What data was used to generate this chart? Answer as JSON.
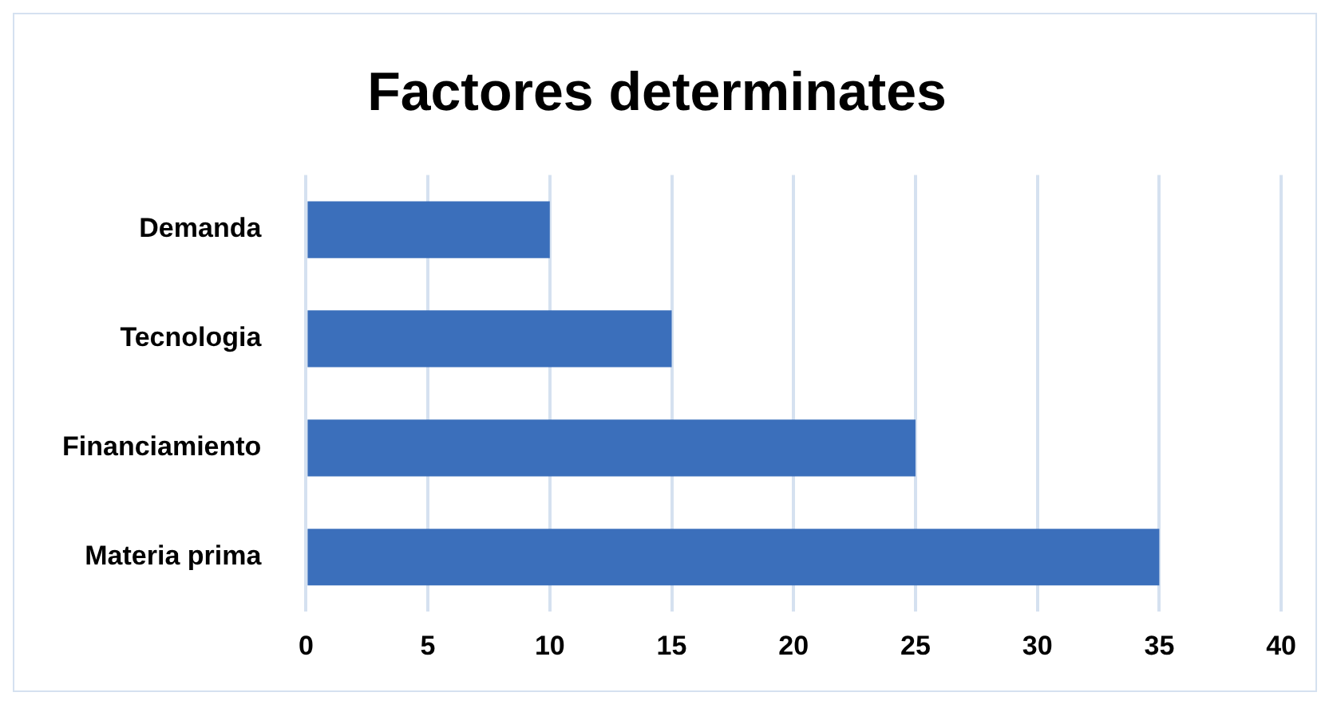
{
  "chart_data": {
    "type": "bar",
    "orientation": "horizontal",
    "title": "Factores determinates",
    "categories": [
      "Demanda",
      "Tecnologia",
      "Financiamiento",
      "Materia prima"
    ],
    "values": [
      10,
      15,
      25,
      35
    ],
    "color": "#3b6fbb",
    "xlim": [
      0,
      40
    ],
    "xticks": [
      0,
      5,
      10,
      15,
      20,
      25,
      30,
      35,
      40
    ],
    "grid": "x",
    "legend": false
  }
}
